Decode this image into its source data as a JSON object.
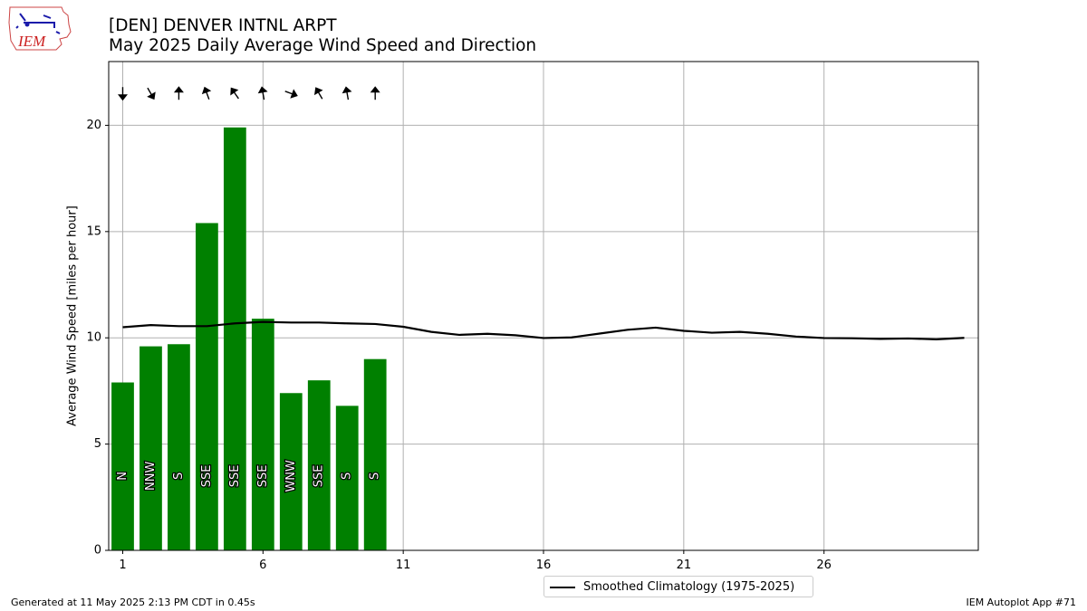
{
  "header": {
    "title_line1": "[DEN] DENVER INTNL ARPT",
    "title_line2": "May 2025 Daily Average Wind Speed and Direction"
  },
  "logo": {
    "text": "IEM",
    "icon": "iowa-state-logo-icon"
  },
  "footer": {
    "generated": "Generated at 11 May 2025 2:13 PM CDT in 0.45s",
    "app": "IEM Autoplot App #71"
  },
  "legend": {
    "label": "Smoothed Climatology (1975-2025)"
  },
  "chart_data": {
    "type": "bar",
    "title": "May 2025 Daily Average Wind Speed and Direction",
    "ylabel": "Average Wind Speed [miles per hour]",
    "xlabel": "",
    "xlim": [
      0.5,
      31.5
    ],
    "ylim": [
      0,
      23
    ],
    "xticks": [
      1,
      6,
      11,
      16,
      21,
      26
    ],
    "yticks": [
      0,
      5,
      10,
      15,
      20
    ],
    "grid": true,
    "legend_position": "bottom-center",
    "colors": {
      "bar": "#008000",
      "line": "#000000",
      "grid": "#b0b0b0"
    },
    "days": [
      1,
      2,
      3,
      4,
      5,
      6,
      7,
      8,
      9,
      10
    ],
    "speed": [
      7.9,
      9.6,
      9.7,
      15.4,
      19.9,
      10.9,
      7.4,
      8.0,
      6.8,
      9.0
    ],
    "direction_labels": [
      "N",
      "NNW",
      "S",
      "SSE",
      "SSE",
      "SSE",
      "WNW",
      "SSE",
      "S",
      "S"
    ],
    "direction_degrees": [
      0,
      330,
      180,
      160,
      145,
      170,
      290,
      150,
      170,
      180
    ],
    "climatology": {
      "name": "Smoothed Climatology (1975-2025)",
      "x": [
        1,
        2,
        3,
        4,
        5,
        6,
        7,
        8,
        9,
        10,
        11,
        12,
        13,
        14,
        15,
        16,
        17,
        18,
        19,
        20,
        21,
        22,
        23,
        24,
        25,
        26,
        27,
        28,
        29,
        30,
        31
      ],
      "y": [
        10.5,
        10.6,
        10.55,
        10.55,
        10.68,
        10.75,
        10.72,
        10.72,
        10.68,
        10.65,
        10.52,
        10.28,
        10.14,
        10.19,
        10.12,
        9.99,
        10.02,
        10.2,
        10.38,
        10.48,
        10.33,
        10.24,
        10.28,
        10.19,
        10.06,
        9.99,
        9.98,
        9.95,
        9.97,
        9.93,
        10.0
      ]
    }
  }
}
